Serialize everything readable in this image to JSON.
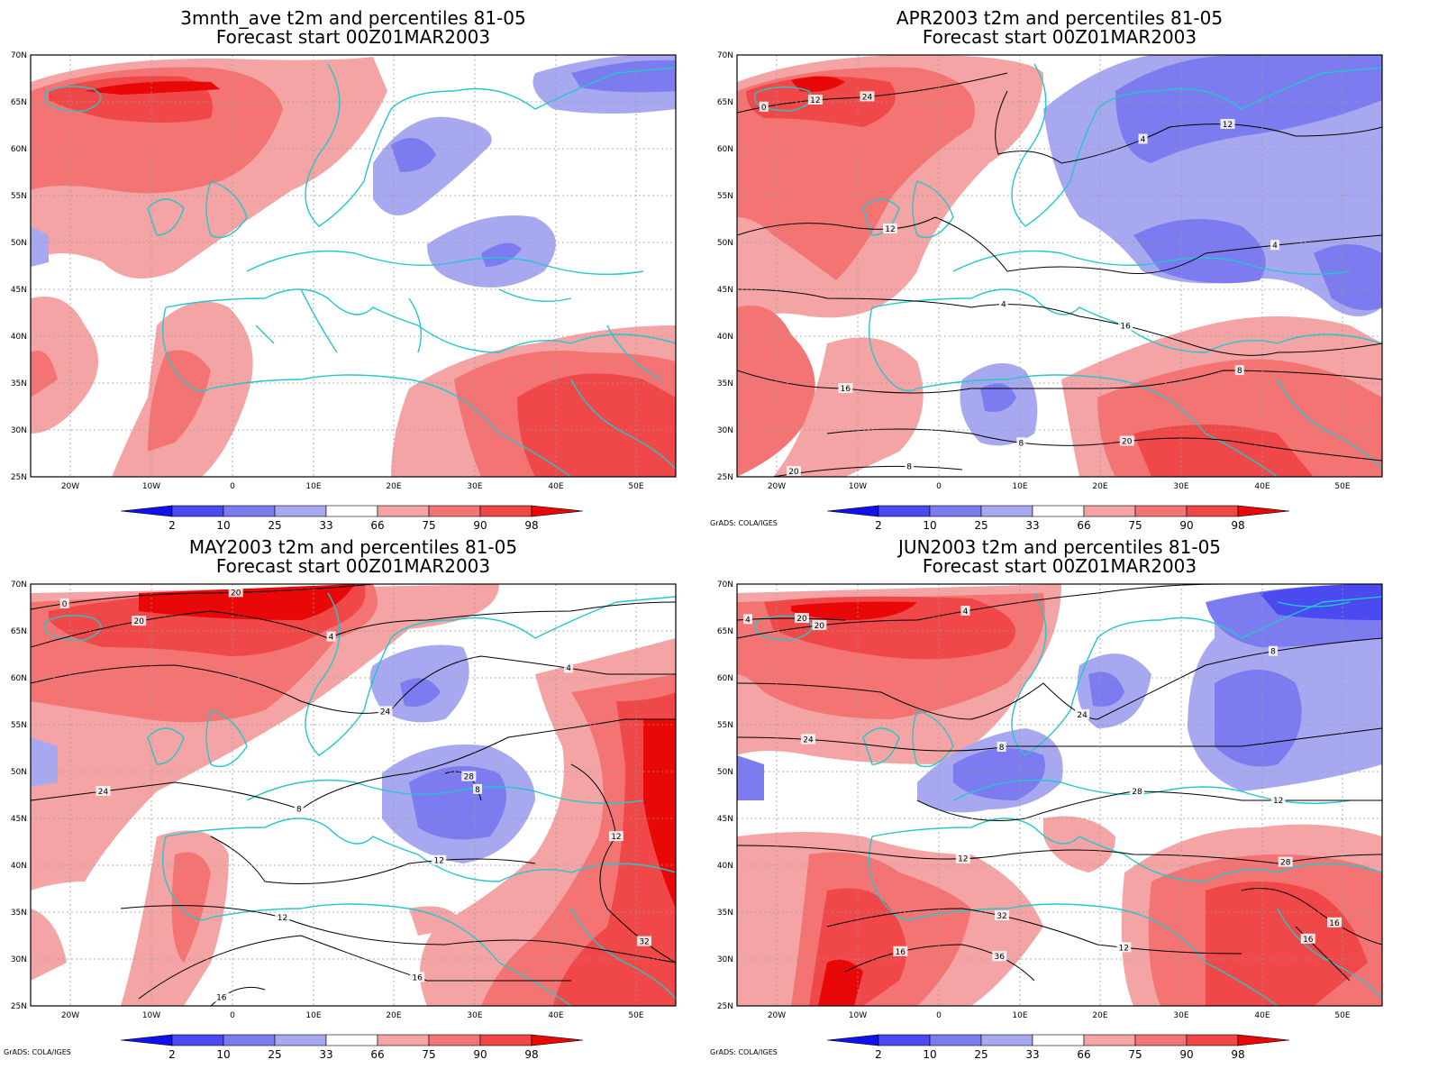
{
  "colors": {
    "neg": [
      "#1010f0",
      "#4a4af0",
      "#7c7cf0",
      "#a8a8f0"
    ],
    "pos": [
      "#f4a4a4",
      "#f47474",
      "#f04848",
      "#e80808"
    ],
    "coast": "#22c8cc",
    "contour": "#000000"
  },
  "colorbar": {
    "labels": [
      "2",
      "10",
      "25",
      "33",
      "66",
      "75",
      "90",
      "98"
    ]
  },
  "axes": {
    "lon_ticks": [
      "20W",
      "10W",
      "0",
      "10E",
      "20E",
      "30E",
      "40E",
      "50E"
    ],
    "lat_ticks": [
      "70N",
      "65N",
      "60N",
      "55N",
      "50N",
      "45N",
      "40N",
      "35N",
      "30N",
      "25N"
    ]
  },
  "panels": [
    {
      "title_line1": "3mnth_ave t2m and percentiles 81-05",
      "title_line2": "Forecast start 00Z01MAR2003",
      "credit": "",
      "contour_labels": []
    },
    {
      "title_line1": "APR2003 t2m and percentiles 81-05",
      "title_line2": "Forecast start 00Z01MAR2003",
      "credit": "GrADS: COLA/IGES",
      "contour_labels": [
        "0",
        "4",
        "4",
        "4",
        "8",
        "8",
        "8",
        "12",
        "12",
        "12",
        "16",
        "16",
        "20",
        "20",
        "24"
      ]
    },
    {
      "title_line1": "MAY2003 t2m and percentiles 81-05",
      "title_line2": "Forecast start 00Z01MAR2003",
      "credit": "GrADS: COLA/IGES",
      "contour_labels": [
        "0",
        "4",
        "4",
        "8",
        "8",
        "12",
        "12",
        "12",
        "16",
        "16",
        "20",
        "20",
        "24",
        "24",
        "28",
        "32"
      ]
    },
    {
      "title_line1": "JUN2003 t2m and percentiles 81-05",
      "title_line2": "Forecast start 00Z01MAR2003",
      "credit": "GrADS: COLA/IGES",
      "contour_labels": [
        "4",
        "4",
        "8",
        "8",
        "12",
        "12",
        "12",
        "16",
        "16",
        "16",
        "20",
        "20",
        "24",
        "24",
        "28",
        "28",
        "32",
        "36"
      ]
    }
  ]
}
